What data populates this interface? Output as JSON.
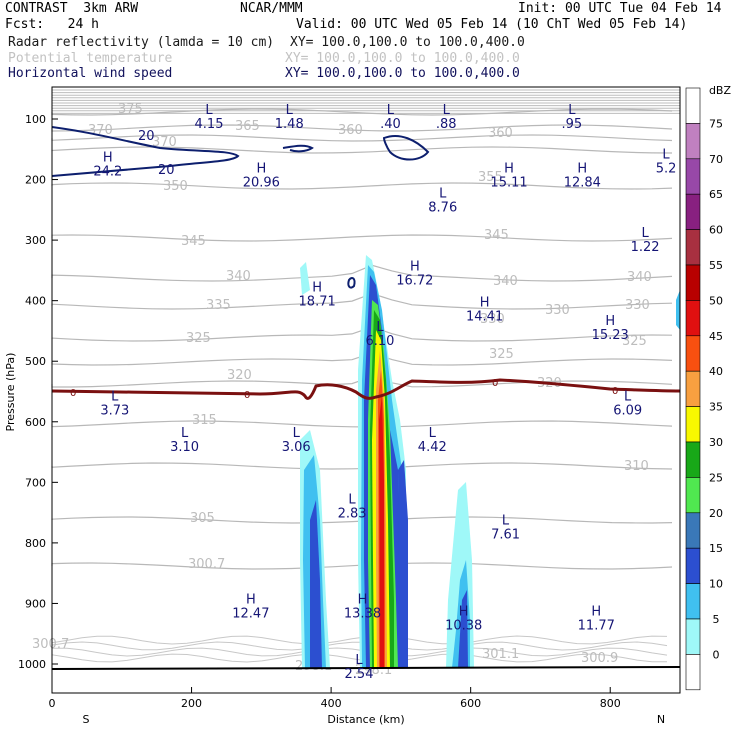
{
  "header": {
    "line1_left": "CONTRAST  3km ARW",
    "line1_mid": "NCAR/MMM",
    "line1_right": "Init: 00 UTC Tue 04 Feb 14",
    "line2_left": "Fcst:   24 h",
    "line2_right": "Valid: 00 UTC Wed 05 Feb 14 (10 ChT Wed 05 Feb 14)",
    "line3_left": "Radar reflectivity (lamda = 10 cm)",
    "line3_right": "XY= 100.0,100.0 to 100.0,400.0",
    "line4_left": "Potential temperature",
    "line4_right": "XY= 100.0,100.0 to 100.0,400.0",
    "line5_left": "Horizontal wind speed",
    "line5_right": "XY= 100.0,100.0 to 100.0,400.0"
  },
  "chart_data": {
    "type": "cross-section",
    "xlabel": "Distance (km)",
    "ylabel": "Pressure (hPa)",
    "x_ticks": [
      "0",
      "200",
      "400",
      "600",
      "800"
    ],
    "y_ticks": [
      "100",
      "200",
      "300",
      "400",
      "500",
      "600",
      "700",
      "800",
      "900",
      "1000"
    ],
    "x_end_left": "S",
    "x_end_right": "N",
    "xlim": [
      0,
      900
    ],
    "ylim": [
      1050,
      50
    ],
    "colorbar": {
      "unit": "dBZ",
      "levels": [
        "0",
        "5",
        "10",
        "15",
        "20",
        "25",
        "30",
        "35",
        "40",
        "45",
        "50",
        "55",
        "60",
        "65",
        "70",
        "75"
      ],
      "colors": [
        "#ffffff",
        "#9ff8f8",
        "#40c0f0",
        "#2c4fd0",
        "#3a78b8",
        "#50e850",
        "#18a818",
        "#f8f800",
        "#f8a040",
        "#f85010",
        "#e01010",
        "#b80000",
        "#a83040",
        "#882080",
        "#9848a8",
        "#c080c0",
        "#ffffff"
      ]
    },
    "theta_labels": [
      "375",
      "370",
      "365",
      "360",
      "355",
      "350",
      "345",
      "340",
      "335",
      "330",
      "325",
      "320",
      "315",
      "310",
      "305",
      "300.7",
      "301.1",
      "300.9",
      "298.1"
    ],
    "freezing_level_label": "0",
    "wind_contour_label": "20",
    "extrema": [
      {
        "t": "L",
        "v": "4.15",
        "x": 225,
        "p": 92
      },
      {
        "t": "L",
        "v": "1.48",
        "x": 340,
        "p": 92
      },
      {
        "t": "L",
        "v": ".40",
        "x": 485,
        "p": 92
      },
      {
        "t": "L",
        "v": ".88",
        "x": 565,
        "p": 92
      },
      {
        "t": "L",
        "v": ".95",
        "x": 745,
        "p": 92
      },
      {
        "t": "H",
        "v": "24.2",
        "x": 80,
        "p": 170
      },
      {
        "t": "H",
        "v": "20.96",
        "x": 300,
        "p": 188
      },
      {
        "t": "H",
        "v": "15.11",
        "x": 655,
        "p": 188
      },
      {
        "t": "H",
        "v": "12.84",
        "x": 760,
        "p": 188
      },
      {
        "t": "L",
        "v": "5.2",
        "x": 880,
        "p": 165
      },
      {
        "t": "L",
        "v": "8.76",
        "x": 560,
        "p": 230
      },
      {
        "t": "L",
        "v": "1.22",
        "x": 850,
        "p": 295
      },
      {
        "t": "H",
        "v": "16.72",
        "x": 520,
        "p": 350
      },
      {
        "t": "H",
        "v": "18.71",
        "x": 380,
        "p": 385
      },
      {
        "t": "H",
        "v": "14.41",
        "x": 620,
        "p": 410
      },
      {
        "t": "L",
        "v": "6.10",
        "x": 470,
        "p": 450
      },
      {
        "t": "H",
        "v": "15.23",
        "x": 800,
        "p": 440
      },
      {
        "t": "L",
        "v": "3.73",
        "x": 90,
        "p": 565
      },
      {
        "t": "L",
        "v": "6.09",
        "x": 825,
        "p": 565
      },
      {
        "t": "L",
        "v": "3.10",
        "x": 190,
        "p": 625
      },
      {
        "t": "L",
        "v": "3.06",
        "x": 350,
        "p": 625
      },
      {
        "t": "L",
        "v": "4.42",
        "x": 545,
        "p": 625
      },
      {
        "t": "L",
        "v": "2.83",
        "x": 430,
        "p": 735
      },
      {
        "t": "L",
        "v": "7.61",
        "x": 650,
        "p": 770
      },
      {
        "t": "H",
        "v": "12.47",
        "x": 285,
        "p": 900
      },
      {
        "t": "H",
        "v": "13.38",
        "x": 445,
        "p": 900
      },
      {
        "t": "H",
        "v": "10.38",
        "x": 590,
        "p": 920
      },
      {
        "t": "H",
        "v": "11.77",
        "x": 780,
        "p": 920
      },
      {
        "t": "L",
        "v": "2.54",
        "x": 440,
        "p": 1000
      }
    ]
  }
}
